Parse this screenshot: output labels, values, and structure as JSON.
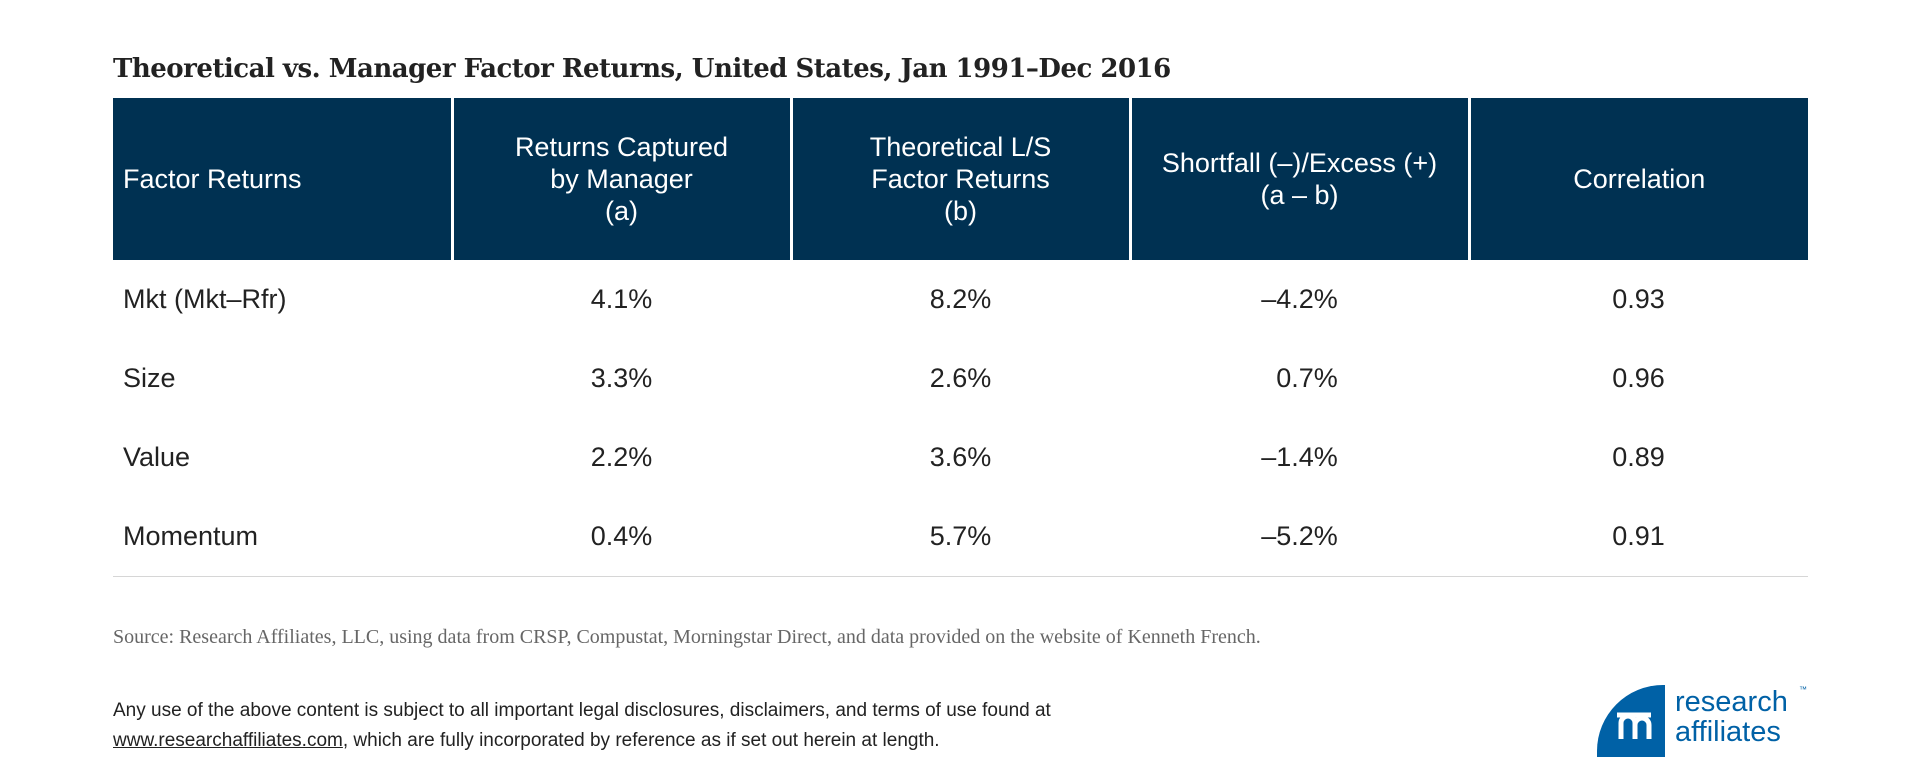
{
  "title": "Theoretical vs. Manager Factor Returns, United States, Jan 1991–Dec 2016",
  "table": {
    "headers": [
      "Factor Returns",
      "Returns Captured\nby Manager\n(a)",
      "Theoretical L/S\nFactor Returns\n(b)",
      "Shortfall (–)/Excess (+)\n(a – b)",
      "Correlation"
    ],
    "rows": [
      [
        "Mkt (Mkt–Rfr)",
        "4.1%",
        "8.2%",
        "–4.2%",
        "0.93"
      ],
      [
        "Size",
        "3.3%",
        "2.6%",
        "0.7%",
        "0.96"
      ],
      [
        "Value",
        "2.2%",
        "3.6%",
        "–1.4%",
        "0.89"
      ],
      [
        "Momentum",
        "0.4%",
        "5.7%",
        "–5.2%",
        "0.91"
      ]
    ]
  },
  "source": "Source: Research Affiliates, LLC, using data from CRSP, Compustat, Morningstar Direct, and data provided on the website of Kenneth French.",
  "disclaimer": {
    "line1": "Any use of the above content is subject to all important legal disclosures, disclaimers, and terms of use found at",
    "link": "www.researchaffiliates.com",
    "line2": ", which are fully incorporated by reference as if set out herein at length."
  },
  "logo": {
    "line1": "research",
    "line2": "affiliates",
    "tm": "™"
  },
  "colors": {
    "header_bg": "#003152",
    "logo_blue": "#0061a6"
  }
}
